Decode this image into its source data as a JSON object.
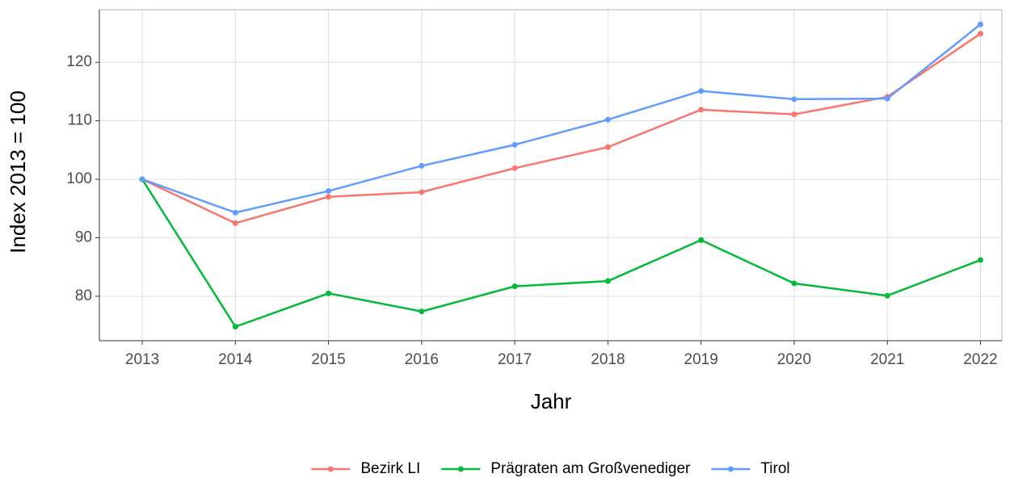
{
  "chart_data": {
    "type": "line",
    "x_label": "Jahr",
    "y_label": "Index  2013  = 100",
    "x": [
      2013,
      2014,
      2015,
      2016,
      2017,
      2018,
      2019,
      2020,
      2021,
      2022
    ],
    "series": [
      {
        "name": "Bezirk LI",
        "color": "#F8766D",
        "values": [
          100,
          92.5,
          97,
          97.8,
          101.9,
          105.5,
          111.9,
          111.1,
          114.1,
          124.9
        ]
      },
      {
        "name": "Prägraten am Großvenediger",
        "color": "#00BA38",
        "values": [
          100,
          74.8,
          80.5,
          77.4,
          81.7,
          82.6,
          89.6,
          82.2,
          80.1,
          86.2
        ]
      },
      {
        "name": "Tirol",
        "color": "#619CFF",
        "values": [
          100,
          94.3,
          98,
          102.3,
          105.9,
          110.2,
          115.1,
          113.7,
          113.8,
          126.5
        ]
      }
    ],
    "xlim": [
      2012.54,
      2022.23
    ],
    "xticks": [
      2013,
      2014,
      2015,
      2016,
      2017,
      2018,
      2019,
      2020,
      2021,
      2022
    ],
    "ylim": [
      72.4,
      129
    ],
    "yticks": [
      80,
      90,
      100,
      110,
      120
    ],
    "grid": true,
    "legend": "bottom"
  }
}
